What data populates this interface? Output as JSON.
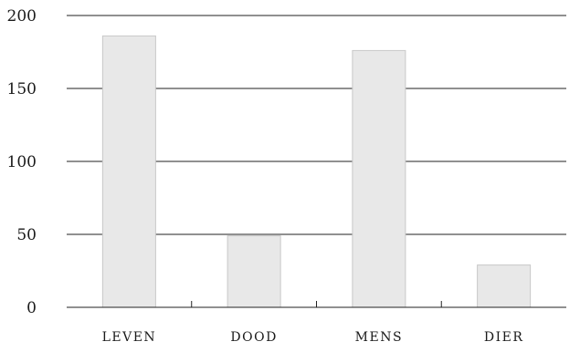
{
  "chart_data": {
    "type": "bar",
    "categories": [
      "LEVEN",
      "DOOD",
      "MENS",
      "DIER"
    ],
    "values": [
      186,
      49,
      176,
      29
    ],
    "ylim": [
      0,
      200
    ],
    "yticks": [
      "0",
      "50",
      "100",
      "150",
      "200"
    ],
    "grid": true,
    "legend": "none",
    "title": "",
    "xlabel": "",
    "ylabel": "",
    "colors": {
      "bar_fill": "#e8e8e8",
      "bar_stroke": "#c8c8c8",
      "grid": "#222222"
    }
  }
}
